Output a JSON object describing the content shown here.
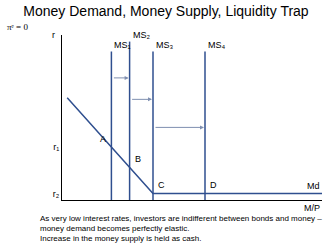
{
  "chart_data": {
    "type": "line",
    "title": "Money Demand, Money Supply, Liquidity Trap",
    "subtitle": "πᵉ = 0",
    "x_label": "M/P",
    "y_label": "r",
    "series": [
      {
        "name": "Md",
        "color": "#2f4f8f",
        "x": [
          2,
          35,
          100
        ],
        "values": [
          62,
          4,
          4
        ]
      },
      {
        "name": "MS₁",
        "color": "#2f4f8f",
        "x": [
          19,
          19
        ],
        "values": [
          0,
          90
        ]
      },
      {
        "name": "MS₂",
        "color": "#2f4f8f",
        "x": [
          26,
          26
        ],
        "values": [
          0,
          96
        ]
      },
      {
        "name": "MS₃",
        "color": "#2f4f8f",
        "x": [
          35,
          35
        ],
        "values": [
          0,
          90
        ]
      },
      {
        "name": "MS₄",
        "color": "#2f4f8f",
        "x": [
          55,
          55
        ],
        "values": [
          0,
          90
        ]
      }
    ],
    "points": [
      {
        "label": "A",
        "x": 19,
        "y": 32
      },
      {
        "label": "B",
        "x": 26,
        "y": 20
      },
      {
        "label": "C",
        "x": 35,
        "y": 4
      },
      {
        "label": "D",
        "x": 55,
        "y": 4
      }
    ],
    "xlim": [
      0,
      100
    ],
    "ylim": [
      0,
      100
    ],
    "yticks": [
      {
        "value": 32,
        "label": "r₁"
      },
      {
        "value": 4,
        "label": "r₂"
      }
    ],
    "tick_labels": "y",
    "grid": false,
    "notes": [
      "As very low interest rates, investors are indifferent between bonds and money – money demand becomes perfectly elastic.",
      "Increase in the money supply is held as cash."
    ]
  }
}
